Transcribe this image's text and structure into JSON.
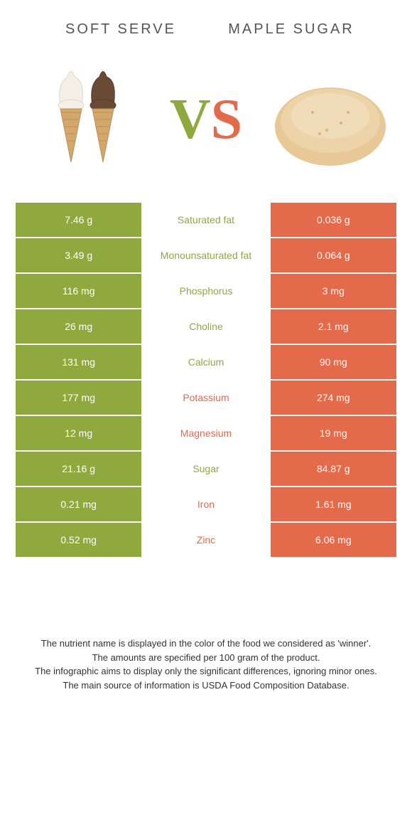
{
  "header": {
    "left": "Soft serve",
    "right": "Maple sugar"
  },
  "vs": {
    "v": "V",
    "s": "S"
  },
  "colors": {
    "left": "#8fa93f",
    "right": "#e36a4a"
  },
  "rows": [
    {
      "left": "7.46 g",
      "label": "Saturated fat",
      "right": "0.036 g",
      "winner": "left"
    },
    {
      "left": "3.49 g",
      "label": "Monounsaturated fat",
      "right": "0.064 g",
      "winner": "left"
    },
    {
      "left": "116 mg",
      "label": "Phosphorus",
      "right": "3 mg",
      "winner": "left"
    },
    {
      "left": "26 mg",
      "label": "Choline",
      "right": "2.1 mg",
      "winner": "left"
    },
    {
      "left": "131 mg",
      "label": "Calcium",
      "right": "90 mg",
      "winner": "left"
    },
    {
      "left": "177 mg",
      "label": "Potassium",
      "right": "274 mg",
      "winner": "right"
    },
    {
      "left": "12 mg",
      "label": "Magnesium",
      "right": "19 mg",
      "winner": "right"
    },
    {
      "left": "21.16 g",
      "label": "Sugar",
      "right": "84.87 g",
      "winner": "left"
    },
    {
      "left": "0.21 mg",
      "label": "Iron",
      "right": "1.61 mg",
      "winner": "right"
    },
    {
      "left": "0.52 mg",
      "label": "Zinc",
      "right": "6.06 mg",
      "winner": "right"
    }
  ],
  "footnote": {
    "l1": "The nutrient name is displayed in the color of the food we considered as 'winner'.",
    "l2": "The amounts are specified per 100 gram of the product.",
    "l3": "The infographic aims to display only the significant differences, ignoring minor ones.",
    "l4": "The main source of information is USDA Food Composition Database."
  }
}
